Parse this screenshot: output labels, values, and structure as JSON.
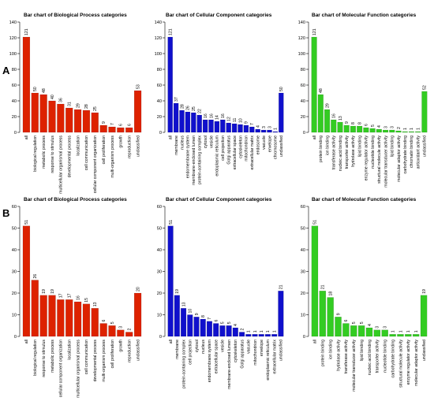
{
  "panel_labels": [
    "A",
    "B"
  ],
  "colors": {
    "biological_process": "#dd2200",
    "cellular_component": "#1010cc",
    "molecular_function": "#33cc22"
  },
  "chart_data": [
    {
      "type": "bar",
      "row": "A",
      "color_key": "biological_process",
      "title": "Bar chart of Biological Process categories",
      "ylim": [
        0,
        140
      ],
      "yticks": [
        0,
        20,
        40,
        60,
        80,
        100,
        120,
        140
      ],
      "categories": [
        "all",
        "biological regulation",
        "metabolic process",
        "response to stimulus",
        "multicellular organismal process",
        "developmental process",
        "localization",
        "cell communication",
        "cellular component organization",
        "cell proliferation",
        "multi-organism process",
        "growth",
        "reproduction",
        "unclassified"
      ],
      "values": [
        121,
        50,
        48,
        40,
        36,
        31,
        29,
        28,
        25,
        9,
        7,
        6,
        6,
        53
      ]
    },
    {
      "type": "bar",
      "row": "A",
      "color_key": "cellular_component",
      "title": "Bar chart of Cellular Component categories",
      "ylim": [
        0,
        140
      ],
      "yticks": [
        0,
        20,
        40,
        60,
        80,
        100,
        120,
        140
      ],
      "categories": [
        "all",
        "membrane",
        "nucleus",
        "endomembrane system",
        "membrane-enclosed lumen",
        "protein-containing complex",
        "cytosol",
        "vesicle",
        "endoplasmic reticulum",
        "cell projection",
        "Golgi apparatus",
        "extracellular space",
        "cytoskeleton",
        "mitochondrion",
        "extracellular matrix",
        "endosome",
        "vacuole",
        "envelope",
        "chromosome",
        "unclassified"
      ],
      "values": [
        121,
        37,
        28,
        26,
        25,
        22,
        16,
        16,
        14,
        16,
        12,
        11,
        10,
        9,
        7,
        4,
        3,
        3,
        1,
        50
      ]
    },
    {
      "type": "bar",
      "row": "A",
      "color_key": "molecular_function",
      "title": "Bar chart of Molecular Function categories",
      "ylim": [
        0,
        140
      ],
      "yticks": [
        0,
        20,
        40,
        60,
        80,
        100,
        120,
        140
      ],
      "categories": [
        "all",
        "protein binding",
        "ion binding",
        "transferase activity",
        "nucleic acid binding",
        "transporter activity",
        "hydrolase activity",
        "lipid binding",
        "enzyme regulator activity",
        "nucleotide binding",
        "structural molecule activity",
        "molecular transducer activity",
        "lipid binding",
        "molecular adaptor activity",
        "carbohydrate binding",
        "chromatin binding",
        "antioxidant activity",
        "unclassified"
      ],
      "values": [
        121,
        48,
        29,
        16,
        13,
        9,
        8,
        8,
        6,
        5,
        4,
        3,
        3,
        2,
        1,
        1,
        1,
        52
      ]
    },
    {
      "type": "bar",
      "row": "B",
      "color_key": "biological_process",
      "title": "Bar chart of Biological Process categories",
      "ylim": [
        0,
        60
      ],
      "yticks": [
        0,
        10,
        20,
        30,
        40,
        50,
        60
      ],
      "categories": [
        "all",
        "biological regulation",
        "response to stimulus",
        "metabolic process",
        "cellular component organization",
        "localization",
        "multicellular organismal process",
        "cell communication",
        "developmental process",
        "multi-organism process",
        "cell proliferation",
        "growth",
        "reproduction",
        "unclassified"
      ],
      "values": [
        51,
        26,
        19,
        19,
        17,
        17,
        16,
        15,
        13,
        6,
        5,
        3,
        2,
        20
      ]
    },
    {
      "type": "bar",
      "row": "B",
      "color_key": "cellular_component",
      "title": "Bar chart of Cellular Component categories",
      "ylim": [
        0,
        60
      ],
      "yticks": [
        0,
        10,
        20,
        30,
        40,
        50,
        60
      ],
      "categories": [
        "all",
        "membrane",
        "protein-containing complex",
        "cell projection",
        "cytosol",
        "nucleus",
        "endomembrane system",
        "extracellular space",
        "vesicle",
        "membrane-enclosed lumen",
        "cytoskeleton",
        "Golgi apparatus",
        "vacuole",
        "mitochondrion",
        "envelope",
        "endoplasmic reticulum",
        "extracellular matrix",
        "unclassified"
      ],
      "values": [
        51,
        19,
        13,
        10,
        9,
        8,
        7,
        6,
        5,
        5,
        4,
        2,
        1,
        1,
        1,
        1,
        1,
        21
      ]
    },
    {
      "type": "bar",
      "row": "B",
      "color_key": "molecular_function",
      "title": "Bar chart of Molecular Function categories",
      "ylim": [
        0,
        60
      ],
      "yticks": [
        0,
        10,
        20,
        30,
        40,
        50,
        60
      ],
      "categories": [
        "all",
        "protein binding",
        "ion binding",
        "hydrolase activity",
        "transferase activity",
        "molecular transducer activity",
        "lipid binding",
        "nucleic acid binding",
        "transporter activity",
        "nucleotide binding",
        "carbohydrate binding",
        "structural molecule activity",
        "enzyme regulator activity",
        "molecular adaptor activity",
        "unclassified"
      ],
      "values": [
        51,
        21,
        18,
        9,
        6,
        5,
        5,
        4,
        3,
        3,
        1,
        1,
        1,
        1,
        19
      ]
    }
  ]
}
